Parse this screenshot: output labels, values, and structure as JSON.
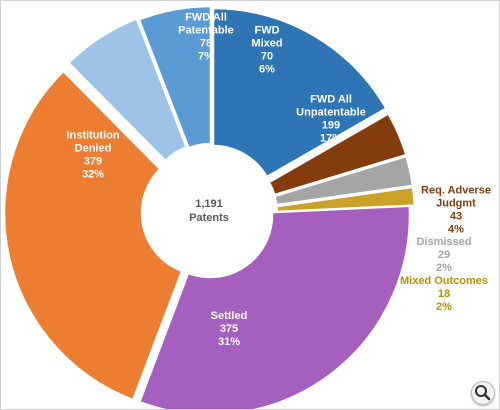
{
  "chart_data": {
    "type": "pie",
    "donut": true,
    "center_label": {
      "value": "1,191",
      "text": "Patents"
    },
    "slices": [
      {
        "lines": [
          "FWD All",
          "Unpatentable",
          "199",
          "17%"
        ],
        "value": 199,
        "percent": 17,
        "color": "#2E75B6",
        "label_color": "#ffffff"
      },
      {
        "lines": [
          "Req. Adverse",
          "Judgmt",
          "43",
          "4%"
        ],
        "value": 43,
        "percent": 4,
        "color": "#843C0C",
        "label_color": "#843C0C"
      },
      {
        "lines": [
          "Dismissed",
          "29",
          "2%"
        ],
        "value": 29,
        "percent": 2,
        "color": "#A5A5A5",
        "label_color": "#A5A5A5"
      },
      {
        "lines": [
          "Mixed Outcomes",
          "18",
          "2%"
        ],
        "value": 18,
        "percent": 2,
        "color": "#C9A227",
        "label_color": "#BF9000"
      },
      {
        "lines": [
          "Settled",
          "375",
          "31%"
        ],
        "value": 375,
        "percent": 31,
        "color": "#A55FBF",
        "label_color": "#ffffff"
      },
      {
        "lines": [
          "Institution",
          "Denied",
          "379",
          "32%"
        ],
        "value": 379,
        "percent": 32,
        "color": "#ED7D31",
        "label_color": "#ffffff"
      },
      {
        "lines": [
          "FWD All",
          "Patentable",
          "78",
          "7%"
        ],
        "value": 78,
        "percent": 7,
        "color": "#9DC3E6",
        "label_color": "#ffffff"
      },
      {
        "lines": [
          "FWD",
          "Mixed",
          "70",
          "6%"
        ],
        "value": 70,
        "percent": 6,
        "color": "#5B9BD5",
        "label_color": "#ffffff"
      }
    ]
  },
  "icons": {
    "zoom": "magnifier-icon"
  }
}
